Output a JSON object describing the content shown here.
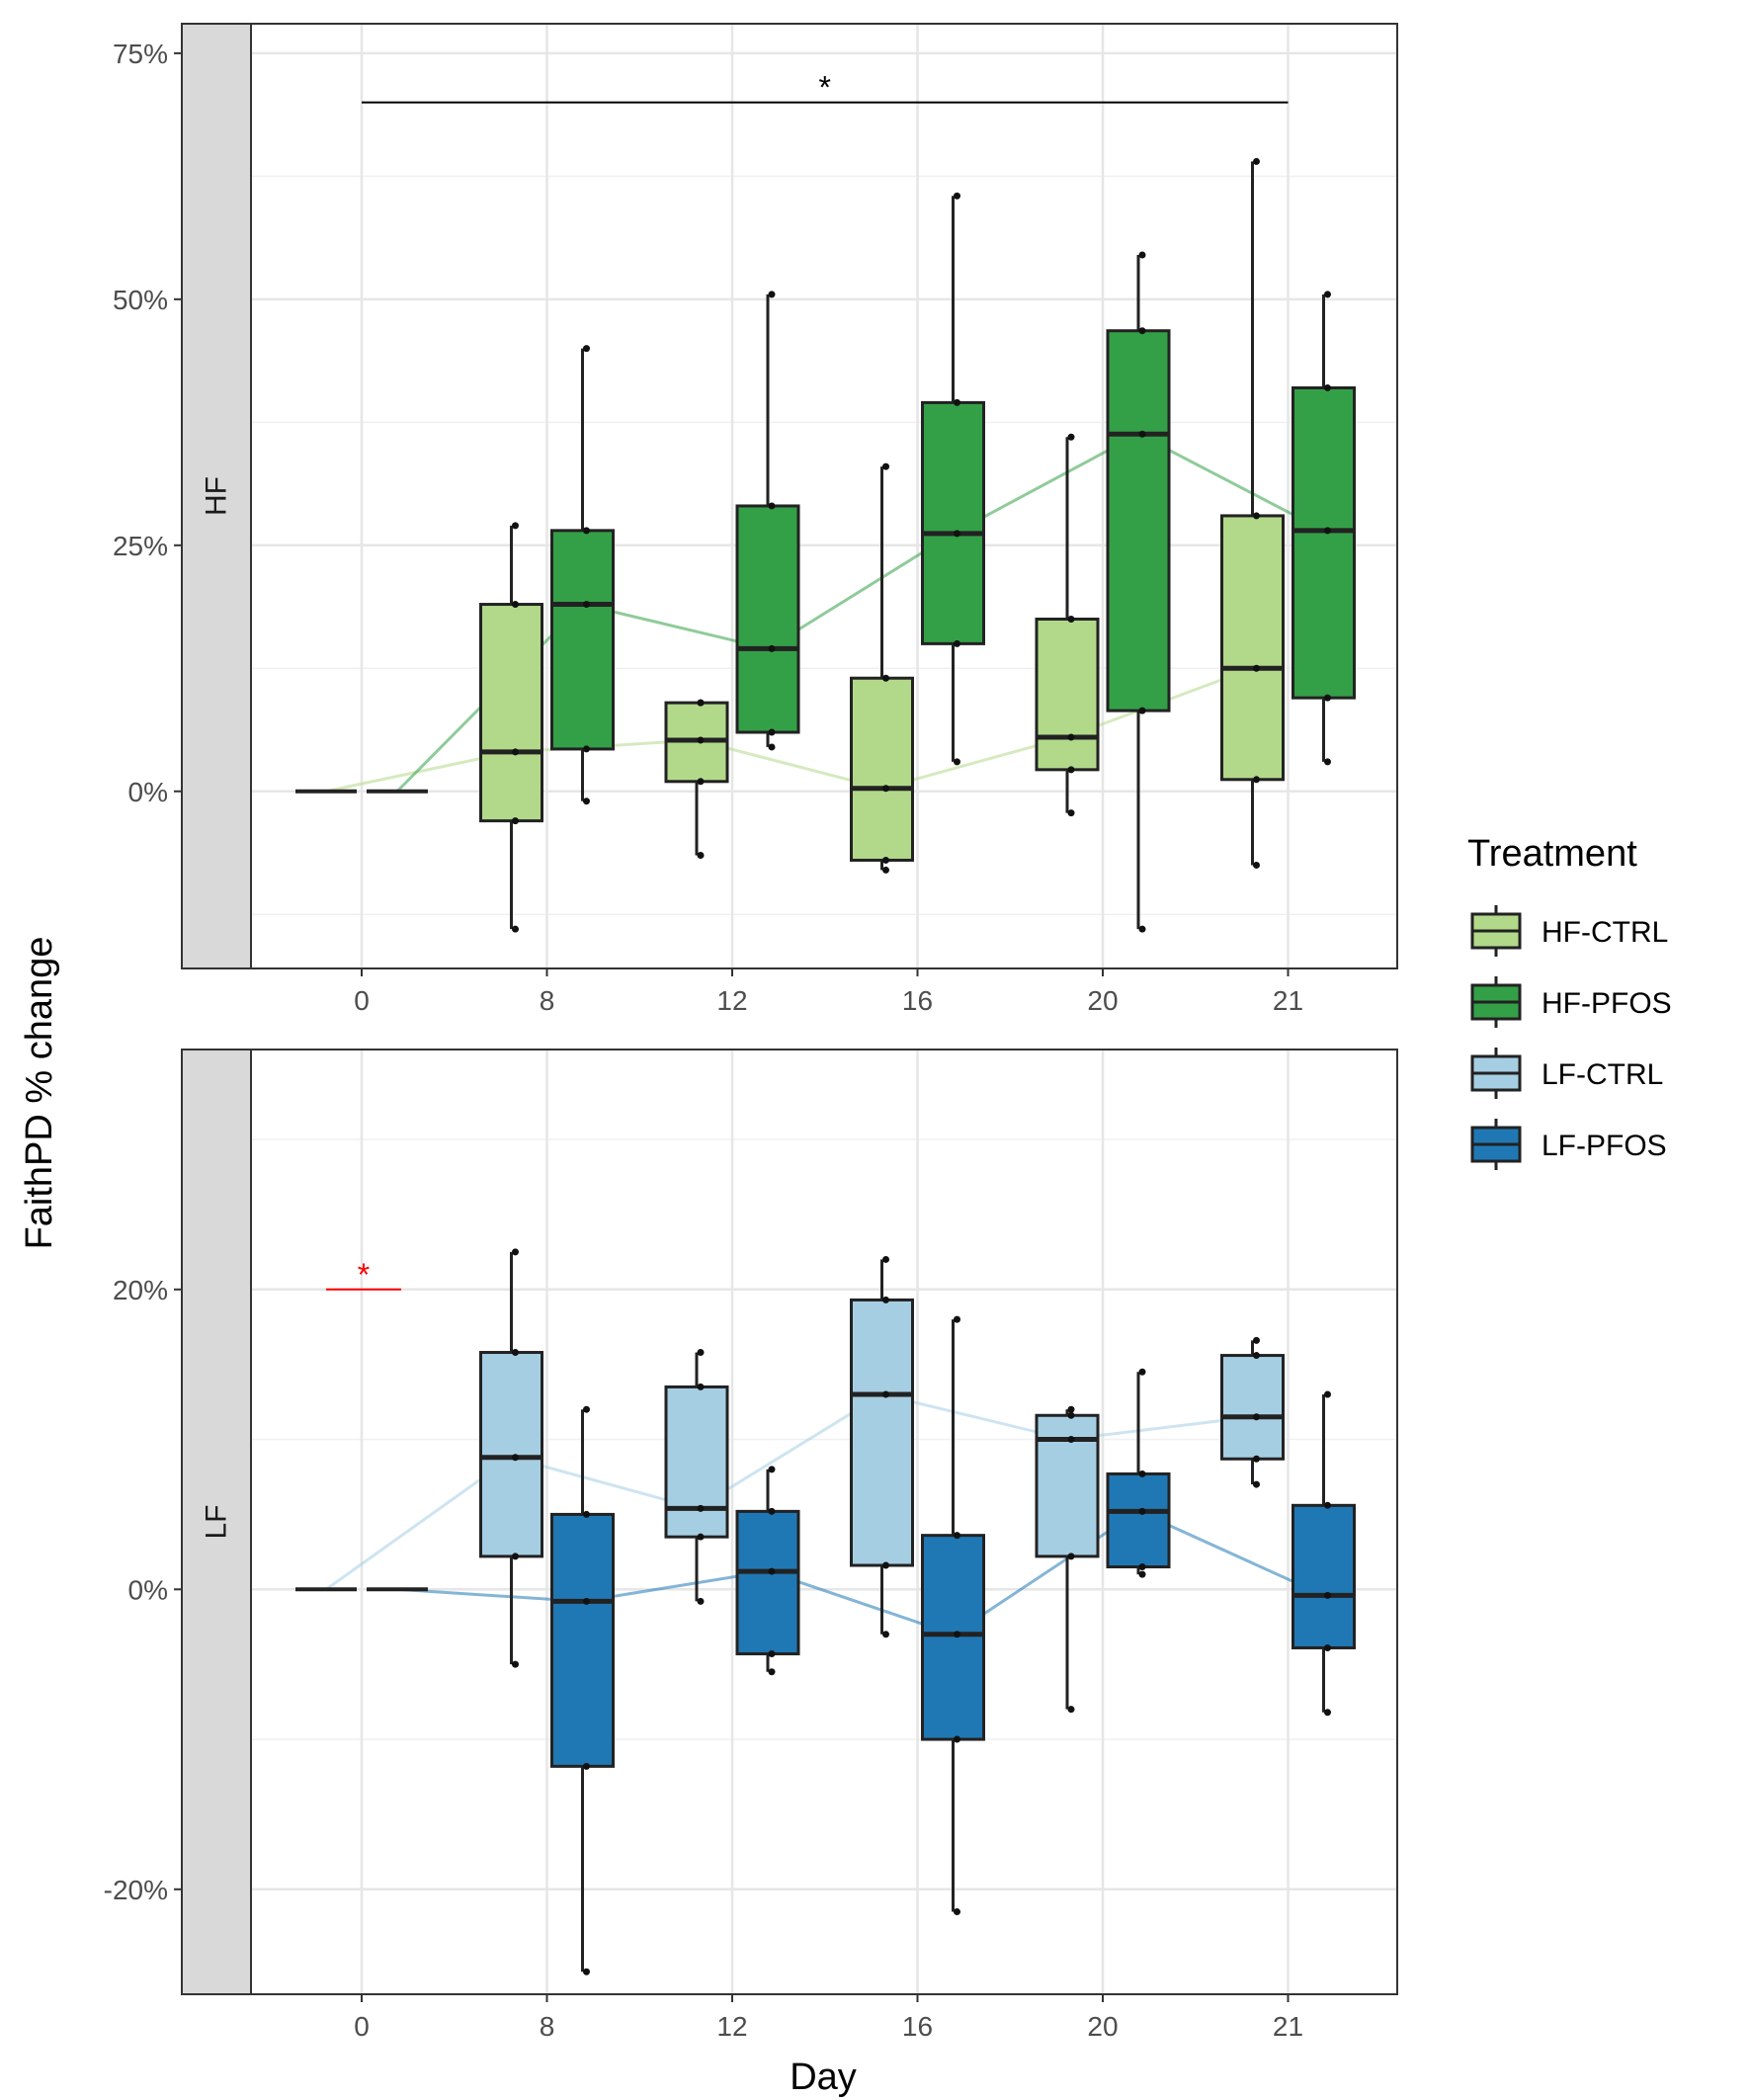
{
  "chart_data": {
    "type": "box",
    "xlabel": "Day",
    "ylabel": "FaithPD % change",
    "categories": [
      "0",
      "8",
      "12",
      "16",
      "20",
      "21"
    ],
    "legend": {
      "title": "Treatment",
      "position": "right",
      "entries": [
        {
          "name": "HF-CTRL",
          "color": "#b2d98a"
        },
        {
          "name": "HF-PFOS",
          "color": "#33a047"
        },
        {
          "name": "LF-CTRL",
          "color": "#a6cee3"
        },
        {
          "name": "LF-PFOS",
          "color": "#1f78b4"
        }
      ]
    },
    "grid": true,
    "panels": [
      {
        "strip": "HF",
        "ylim": [
          -18,
          78
        ],
        "yticks": [
          0,
          25,
          50,
          75
        ],
        "ytick_labels": [
          "0%",
          "25%",
          "50%",
          "75%"
        ],
        "significance": {
          "label": "*",
          "from": "0",
          "to": "21",
          "y": 70,
          "color": "#000000"
        },
        "series": [
          {
            "name": "HF-CTRL",
            "boxes": [
              {
                "day": "0",
                "min": 0,
                "q1": 0,
                "median": 0,
                "q3": 0,
                "max": 0
              },
              {
                "day": "8",
                "min": -14,
                "q1": -3,
                "median": 4,
                "q3": 19,
                "max": 27
              },
              {
                "day": "12",
                "min": -6.5,
                "q1": 1,
                "median": 5.2,
                "q3": 9,
                "max": 9
              },
              {
                "day": "16",
                "min": -8,
                "q1": -7,
                "median": 0.3,
                "q3": 11.5,
                "max": 33
              },
              {
                "day": "20",
                "min": -2.2,
                "q1": 2.2,
                "median": 5.5,
                "q3": 17.5,
                "max": 36
              },
              {
                "day": "21",
                "min": -7.5,
                "q1": 1.2,
                "median": 12.5,
                "q3": 28,
                "max": 64
              }
            ]
          },
          {
            "name": "HF-PFOS",
            "boxes": [
              {
                "day": "0",
                "min": 0,
                "q1": 0,
                "median": 0,
                "q3": 0,
                "max": 0
              },
              {
                "day": "8",
                "min": -1,
                "q1": 4.3,
                "median": 19,
                "q3": 26.5,
                "max": 45
              },
              {
                "day": "12",
                "min": 4.5,
                "q1": 6,
                "median": 14.5,
                "q3": 29,
                "max": 50.5
              },
              {
                "day": "16",
                "min": 3,
                "q1": 15,
                "median": 26.2,
                "q3": 39.5,
                "max": 60.5
              },
              {
                "day": "20",
                "min": -14,
                "q1": 8.2,
                "median": 36.3,
                "q3": 46.8,
                "max": 54.5
              },
              {
                "day": "21",
                "min": 3,
                "q1": 9.5,
                "median": 26.5,
                "q3": 41,
                "max": 50.5
              }
            ]
          }
        ]
      },
      {
        "strip": "LF",
        "ylim": [
          -27,
          36
        ],
        "yticks": [
          -20,
          0,
          20
        ],
        "ytick_labels": [
          "-20%",
          "0%",
          "20%"
        ],
        "significance": {
          "label": "*",
          "from": "0",
          "to": "0",
          "y": 20,
          "color": "#ff0000"
        },
        "series": [
          {
            "name": "LF-CTRL",
            "boxes": [
              {
                "day": "0",
                "min": 0,
                "q1": 0,
                "median": 0,
                "q3": 0,
                "max": 0
              },
              {
                "day": "8",
                "min": -5,
                "q1": 2.2,
                "median": 8.8,
                "q3": 15.8,
                "max": 22.5
              },
              {
                "day": "12",
                "min": -0.8,
                "q1": 3.5,
                "median": 5.4,
                "q3": 13.5,
                "max": 15.8
              },
              {
                "day": "16",
                "min": -3,
                "q1": 1.6,
                "median": 13,
                "q3": 19.3,
                "max": 22
              },
              {
                "day": "20",
                "min": -8,
                "q1": 2.2,
                "median": 10,
                "q3": 11.6,
                "max": 12
              },
              {
                "day": "21",
                "min": 7,
                "q1": 8.7,
                "median": 11.5,
                "q3": 15.6,
                "max": 16.6
              }
            ]
          },
          {
            "name": "LF-PFOS",
            "boxes": [
              {
                "day": "0",
                "min": 0,
                "q1": 0,
                "median": 0,
                "q3": 0,
                "max": 0
              },
              {
                "day": "8",
                "min": -25.5,
                "q1": -11.8,
                "median": -0.8,
                "q3": 5,
                "max": 12
              },
              {
                "day": "12",
                "min": -5.5,
                "q1": -4.3,
                "median": 1.2,
                "q3": 5.2,
                "max": 8
              },
              {
                "day": "16",
                "min": -21.5,
                "q1": -10,
                "median": -3,
                "q3": 3.6,
                "max": 18
              },
              {
                "day": "20",
                "min": 1,
                "q1": 1.5,
                "median": 5.2,
                "q3": 7.7,
                "max": 14.5
              },
              {
                "day": "21",
                "min": -8.2,
                "q1": -3.9,
                "median": -0.4,
                "q3": 5.6,
                "max": 13
              }
            ]
          }
        ]
      }
    ]
  }
}
